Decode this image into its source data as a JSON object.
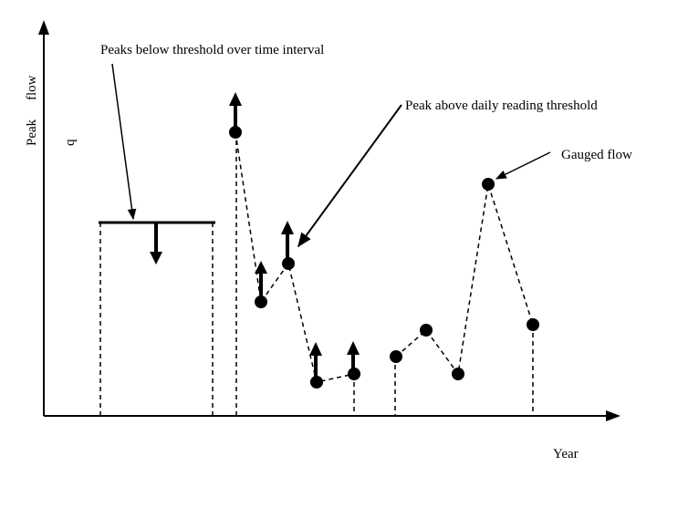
{
  "labels": {
    "y_axis_peak": "Peak",
    "y_axis_flow": "flow",
    "y_axis_q": "q",
    "x_axis": "Year",
    "peaks_below": "Peaks below threshold over time interval",
    "peak_above": "Peak above daily reading threshold",
    "gauged_flow": "Gauged flow"
  }
}
